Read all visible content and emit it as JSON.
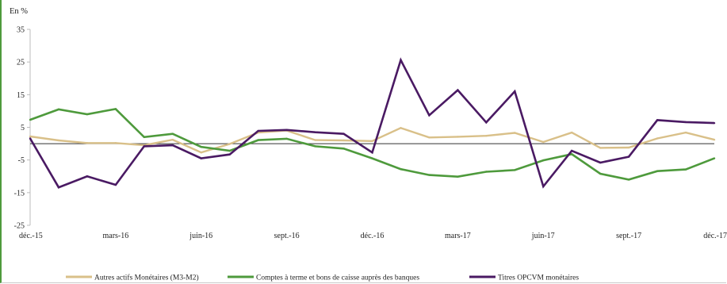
{
  "chart_data": {
    "type": "line",
    "unit_label": "En %",
    "ylim": [
      -25,
      35
    ],
    "y_ticks": [
      35,
      25,
      15,
      5,
      -5,
      -15,
      -25
    ],
    "x": [
      "déc.-15",
      "janv.-16",
      "févr.-16",
      "mars-16",
      "avr.-16",
      "mai-16",
      "juin-16",
      "juil.-16",
      "août-16",
      "sept.-16",
      "oct.-16",
      "nov.-16",
      "déc.-16",
      "janv.-17",
      "févr.-17",
      "mars-17",
      "avr.-17",
      "mai-17",
      "juin-17",
      "juil.-17",
      "août-17",
      "sept.-17",
      "oct.-17",
      "nov.-17",
      "déc.-17"
    ],
    "x_tick_labels": [
      {
        "index": 0,
        "label": "déc.-15"
      },
      {
        "index": 3,
        "label": "mars-16"
      },
      {
        "index": 6,
        "label": "juin-16"
      },
      {
        "index": 9,
        "label": "sept.-16"
      },
      {
        "index": 12,
        "label": "déc.-16"
      },
      {
        "index": 15,
        "label": "mars-17"
      },
      {
        "index": 18,
        "label": "juin-17"
      },
      {
        "index": 21,
        "label": "sept.-17"
      },
      {
        "index": 24,
        "label": "déc.-17"
      }
    ],
    "grid": false,
    "zero_line": true,
    "legend_position": "bottom",
    "series": [
      {
        "name": "Autres actifs Monétaires (M3-M2)",
        "color": "#d9c089",
        "values": [
          2.2,
          1.0,
          0.2,
          0.2,
          -0.5,
          1.2,
          -2.7,
          -0.1,
          3.4,
          4.0,
          1.1,
          1.0,
          0.8,
          4.8,
          1.9,
          2.1,
          2.4,
          3.3,
          0.5,
          3.4,
          -1.3,
          -1.2,
          1.6,
          3.4,
          1.2
        ]
      },
      {
        "name": "Comptes à terme et bons de caisse auprès des banques",
        "color": "#4e9a3c",
        "values": [
          7.3,
          10.5,
          9.0,
          10.6,
          2.0,
          3.0,
          -1.0,
          -2.2,
          1.1,
          1.5,
          -0.8,
          -1.5,
          -4.5,
          -7.8,
          -9.6,
          -10.1,
          -8.6,
          -8.1,
          -5.1,
          -3.2,
          -9.2,
          -11.0,
          -8.4,
          -7.9,
          -4.5
        ]
      },
      {
        "name": "Titres OPCVM monétaires",
        "color": "#4a1a63",
        "values": [
          1.6,
          -13.4,
          -10.0,
          -12.6,
          -0.8,
          -0.5,
          -4.5,
          -3.3,
          3.9,
          4.2,
          3.5,
          3.0,
          -2.7,
          25.6,
          8.7,
          16.4,
          6.5,
          16.0,
          -13.1,
          -2.2,
          -5.8,
          -4.0,
          7.2,
          6.6,
          6.3
        ]
      }
    ]
  }
}
